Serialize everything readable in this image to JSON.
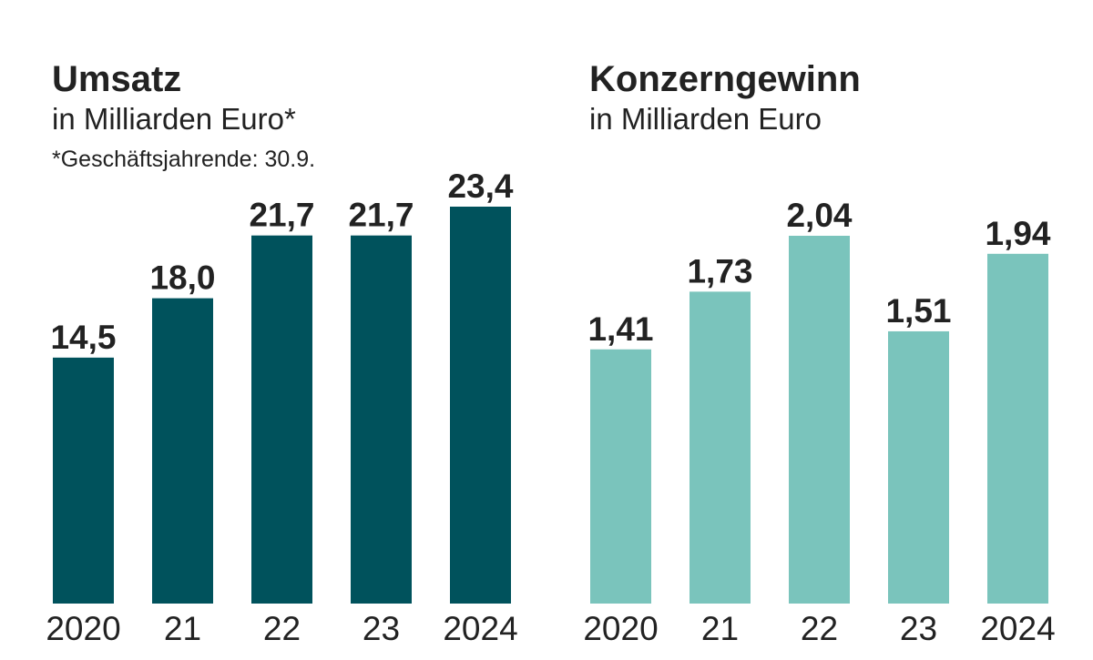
{
  "chart_data": [
    {
      "type": "bar",
      "title": "Umsatz",
      "subtitle": "in Milliarden Euro*",
      "note": "*Geschäftsjahrende: 30.9.",
      "categories": [
        "2020",
        "21",
        "22",
        "23",
        "2024"
      ],
      "values": [
        14.5,
        18.0,
        21.7,
        21.7,
        23.4
      ],
      "labels": [
        "14,5",
        "18,0",
        "21,7",
        "21,7",
        "23,4"
      ],
      "color": "#00525C",
      "ylim": [
        0,
        23.4
      ],
      "grid": false
    },
    {
      "type": "bar",
      "title": "Konzerngewinn",
      "subtitle": "in Milliarden Euro",
      "categories": [
        "2020",
        "21",
        "22",
        "23",
        "2024"
      ],
      "values": [
        1.41,
        1.73,
        2.04,
        1.51,
        1.94
      ],
      "labels": [
        "1,41",
        "1,73",
        "2,04",
        "1,51",
        "1,94"
      ],
      "color": "#7AC4BC",
      "ylim": [
        0,
        2.04
      ],
      "grid": false
    }
  ]
}
